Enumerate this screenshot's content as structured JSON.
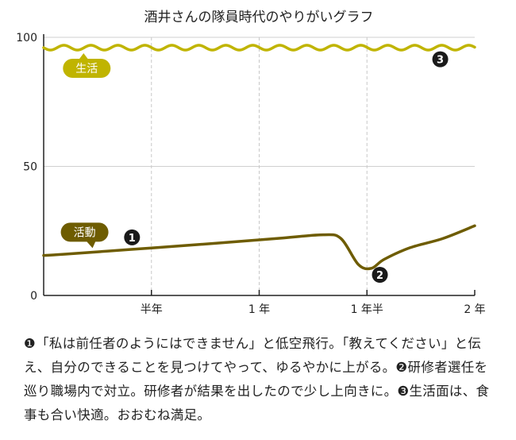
{
  "chart_data": {
    "type": "line",
    "title": "酒井さんの隊員時代のやりがいグラフ",
    "xlabel": "",
    "ylabel": "",
    "x_unit": "years",
    "xlim": [
      0,
      2
    ],
    "ylim": [
      0,
      100
    ],
    "y_ticks": [
      0,
      50,
      100
    ],
    "x_ticks": [
      {
        "value": 0.5,
        "label": "半年"
      },
      {
        "value": 1.0,
        "label": "1 年"
      },
      {
        "value": 1.5,
        "label": "1 年半"
      },
      {
        "value": 2.0,
        "label": "2 年"
      }
    ],
    "grid": {
      "vertical": "dashed",
      "horizontal": "solid"
    },
    "series": [
      {
        "name": "生活",
        "color": "#c0b400",
        "shape": "wavy",
        "x": [
          0,
          0.25,
          0.5,
          0.75,
          1.0,
          1.25,
          1.5,
          1.75,
          2.0
        ],
        "values": [
          96,
          96,
          96,
          96,
          96,
          96,
          96,
          96,
          96
        ]
      },
      {
        "name": "活動",
        "color": "#6e5c00",
        "shape": "smooth",
        "x": [
          0,
          0.1,
          0.3,
          0.5,
          0.7,
          0.9,
          1.1,
          1.3,
          1.38,
          1.46,
          1.52,
          1.58,
          1.7,
          1.85,
          2.0
        ],
        "values": [
          15.5,
          16,
          17.2,
          18.4,
          19.6,
          20.9,
          22.2,
          23.5,
          22,
          12,
          10.5,
          14,
          18.5,
          22,
          27
        ]
      }
    ],
    "markers": [
      {
        "label": "1",
        "x": 0.41,
        "y": 22.5
      },
      {
        "label": "2",
        "x": 1.56,
        "y": 8
      },
      {
        "label": "3",
        "x": 1.84,
        "y": 91.5
      }
    ],
    "series_labels": [
      {
        "text": "生活",
        "x": 0.2,
        "y": 88
      },
      {
        "text": "活動",
        "x": 0.19,
        "y": 24.5
      }
    ]
  },
  "caption": {
    "marker1": "❶",
    "text1": "「私は前任者のようにはできません」と低空飛行。「教えてください」と伝え、自分のできることを見つけてやって、ゆるやかに上がる。",
    "marker2": "❷",
    "text2": "研修者選任を巡り職場内で対立。研修者が結果を出したので少し上向きに。",
    "marker3": "❸",
    "text3": "生活面は、食事も合い快適。おおむね満足。"
  }
}
